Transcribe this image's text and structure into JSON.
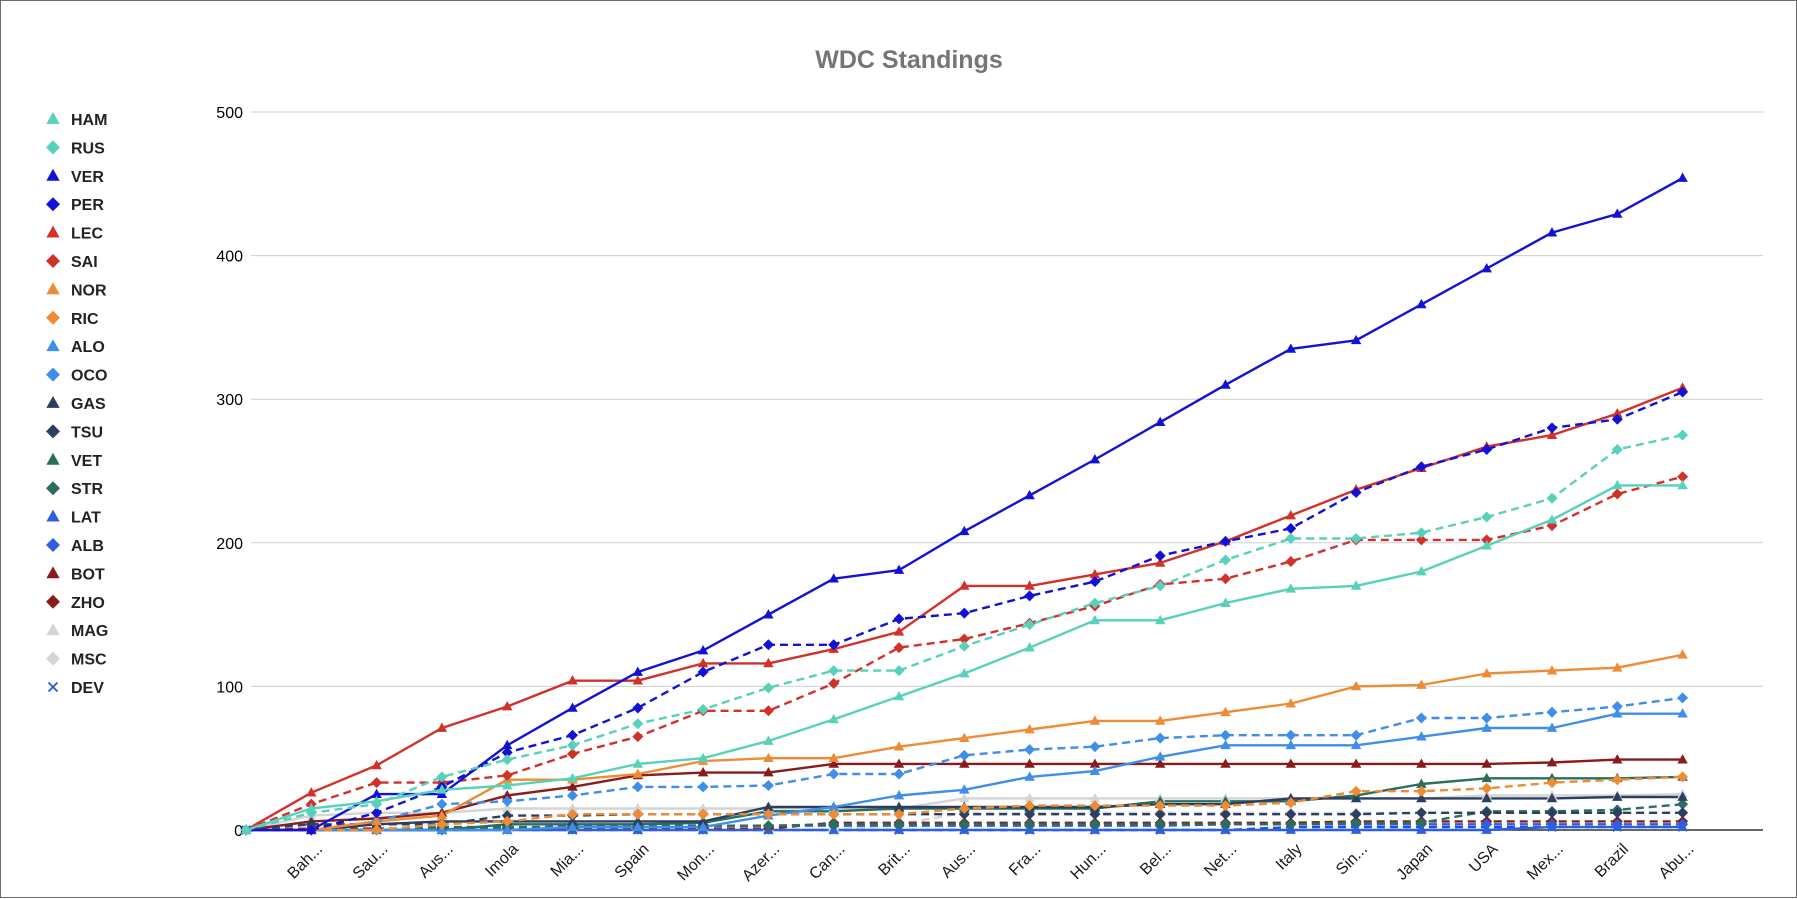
{
  "chart_data": {
    "type": "line",
    "title": "WDC Standings",
    "xlabel": "",
    "ylabel": "",
    "ylim": [
      0,
      500
    ],
    "yticks": [
      "0",
      "100",
      "200",
      "300",
      "400",
      "500"
    ],
    "grid": true,
    "legend_position": "left",
    "categories": [
      "",
      "Bah...",
      "Sau...",
      "Aus...",
      "Imola",
      "Mia...",
      "Spain",
      "Mon...",
      "Azer...",
      "Can...",
      "Brit...",
      "Aus...",
      "Fra...",
      "Hun...",
      "Bel...",
      "Net...",
      "Italy",
      "Sin...",
      "Japan",
      "USA",
      "Mex...",
      "Brazil",
      "Abu..."
    ],
    "series": [
      {
        "name": "HAM",
        "color": "#57d1b9",
        "marker": "triangle",
        "dash": false,
        "values": [
          0,
          15,
          20,
          28,
          31,
          36,
          46,
          50,
          62,
          77,
          93,
          109,
          127,
          146,
          146,
          158,
          168,
          170,
          180,
          198,
          216,
          240,
          240
        ]
      },
      {
        "name": "RUS",
        "color": "#57d1b9",
        "marker": "diamond",
        "dash": true,
        "values": [
          0,
          12,
          18,
          37,
          49,
          59,
          74,
          84,
          99,
          111,
          111,
          128,
          143,
          158,
          170,
          188,
          203,
          203,
          207,
          218,
          231,
          265,
          275
        ]
      },
      {
        "name": "VER",
        "color": "#1212d6",
        "marker": "triangle",
        "dash": false,
        "values": [
          0,
          0,
          25,
          25,
          59,
          85,
          110,
          125,
          150,
          175,
          181,
          208,
          233,
          258,
          284,
          310,
          335,
          341,
          366,
          391,
          416,
          429,
          454
        ]
      },
      {
        "name": "PER",
        "color": "#1212d6",
        "marker": "diamond",
        "dash": true,
        "values": [
          0,
          0,
          12,
          30,
          54,
          66,
          85,
          110,
          129,
          129,
          147,
          151,
          163,
          173,
          191,
          201,
          210,
          235,
          253,
          265,
          280,
          286,
          305
        ]
      },
      {
        "name": "LEC",
        "color": "#d2312a",
        "marker": "triangle",
        "dash": false,
        "values": [
          0,
          26,
          45,
          71,
          86,
          104,
          104,
          116,
          116,
          126,
          138,
          170,
          170,
          178,
          186,
          201,
          219,
          237,
          252,
          267,
          275,
          290,
          308
        ]
      },
      {
        "name": "SAI",
        "color": "#d2312a",
        "marker": "diamond",
        "dash": true,
        "values": [
          0,
          18,
          33,
          33,
          38,
          53,
          65,
          83,
          83,
          102,
          127,
          133,
          144,
          156,
          171,
          175,
          187,
          202,
          202,
          202,
          212,
          234,
          246
        ]
      },
      {
        "name": "NOR",
        "color": "#ee8c35",
        "marker": "triangle",
        "dash": false,
        "values": [
          0,
          0,
          6,
          10,
          35,
          35,
          39,
          48,
          50,
          50,
          58,
          64,
          70,
          76,
          76,
          82,
          88,
          100,
          101,
          109,
          111,
          113,
          122
        ]
      },
      {
        "name": "RIC",
        "color": "#ee8c35",
        "marker": "diamond",
        "dash": true,
        "values": [
          0,
          0,
          0,
          4,
          6,
          11,
          11,
          11,
          11,
          11,
          11,
          15,
          17,
          17,
          17,
          17,
          19,
          27,
          27,
          29,
          33,
          35,
          37
        ]
      },
      {
        "name": "ALO",
        "color": "#3f8ee8",
        "marker": "triangle",
        "dash": false,
        "values": [
          0,
          0,
          0,
          0,
          0,
          2,
          2,
          2,
          10,
          16,
          24,
          28,
          37,
          41,
          51,
          59,
          59,
          59,
          65,
          71,
          71,
          81,
          81
        ]
      },
      {
        "name": "OCO",
        "color": "#3f8ee8",
        "marker": "diamond",
        "dash": true,
        "values": [
          0,
          0,
          6,
          18,
          20,
          24,
          30,
          30,
          31,
          39,
          39,
          52,
          56,
          58,
          64,
          66,
          66,
          66,
          78,
          78,
          82,
          86,
          92
        ]
      },
      {
        "name": "GAS",
        "color": "#2c3f63",
        "marker": "triangle",
        "dash": false,
        "values": [
          0,
          0,
          4,
          6,
          6,
          6,
          6,
          6,
          16,
          16,
          16,
          16,
          16,
          16,
          18,
          18,
          22,
          22,
          22,
          22,
          22,
          23,
          23
        ]
      },
      {
        "name": "TSU",
        "color": "#2c3f63",
        "marker": "diamond",
        "dash": true,
        "values": [
          0,
          4,
          4,
          4,
          10,
          10,
          11,
          11,
          11,
          11,
          11,
          11,
          11,
          11,
          11,
          11,
          11,
          11,
          12,
          12,
          12,
          12,
          12
        ]
      },
      {
        "name": "VET",
        "color": "#2a6e5e",
        "marker": "triangle",
        "dash": false,
        "values": [
          0,
          0,
          0,
          0,
          4,
          4,
          4,
          5,
          13,
          13,
          15,
          15,
          15,
          15,
          20,
          20,
          20,
          24,
          32,
          36,
          36,
          36,
          37
        ]
      },
      {
        "name": "STR",
        "color": "#2a6e5e",
        "marker": "diamond",
        "dash": true,
        "values": [
          0,
          0,
          0,
          2,
          2,
          2,
          2,
          3,
          3,
          4,
          4,
          4,
          4,
          4,
          4,
          4,
          4,
          5,
          5,
          13,
          13,
          14,
          18
        ]
      },
      {
        "name": "LAT",
        "color": "#2e5fe0",
        "marker": "triangle",
        "dash": false,
        "values": [
          0,
          0,
          0,
          0,
          0,
          0,
          0,
          0,
          0,
          0,
          0,
          0,
          0,
          0,
          0,
          0,
          0,
          0,
          0,
          0,
          2,
          2,
          2
        ]
      },
      {
        "name": "ALB",
        "color": "#2e5fe0",
        "marker": "diamond",
        "dash": true,
        "values": [
          0,
          0,
          0,
          0,
          1,
          3,
          3,
          3,
          3,
          3,
          3,
          3,
          3,
          3,
          3,
          4,
          4,
          4,
          4,
          4,
          4,
          4,
          4
        ]
      },
      {
        "name": "BOT",
        "color": "#8a1b1b",
        "marker": "triangle",
        "dash": false,
        "values": [
          0,
          6,
          8,
          12,
          24,
          30,
          38,
          40,
          40,
          46,
          46,
          46,
          46,
          46,
          46,
          46,
          46,
          46,
          46,
          46,
          47,
          49,
          49
        ]
      },
      {
        "name": "ZHO",
        "color": "#8a1b1b",
        "marker": "diamond",
        "dash": true,
        "values": [
          0,
          1,
          1,
          1,
          1,
          1,
          1,
          1,
          1,
          5,
          5,
          5,
          5,
          5,
          5,
          5,
          5,
          6,
          6,
          6,
          6,
          6,
          6
        ]
      },
      {
        "name": "MAG",
        "color": "#d4d4d4",
        "marker": "triangle",
        "dash": false,
        "values": [
          0,
          10,
          12,
          12,
          15,
          15,
          15,
          15,
          15,
          15,
          15,
          22,
          22,
          22,
          22,
          22,
          22,
          22,
          22,
          24,
          24,
          24,
          25
        ]
      },
      {
        "name": "MSC",
        "color": "#d4d4d4",
        "marker": "diamond",
        "dash": true,
        "values": [
          0,
          0,
          0,
          0,
          0,
          0,
          0,
          0,
          0,
          0,
          4,
          12,
          12,
          12,
          12,
          12,
          12,
          12,
          12,
          12,
          12,
          12,
          12
        ]
      },
      {
        "name": "DEV",
        "color": "#1a4fe8",
        "marker": "x",
        "dash": true,
        "values": [
          0,
          0,
          0,
          0,
          0,
          0,
          0,
          0,
          0,
          0,
          0,
          0,
          0,
          0,
          0,
          0,
          2,
          2,
          2,
          2,
          2,
          2,
          2
        ]
      }
    ]
  }
}
